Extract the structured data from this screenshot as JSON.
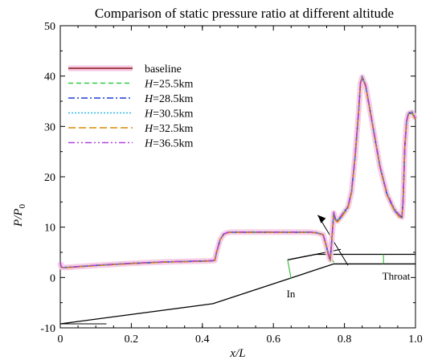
{
  "chart_data": {
    "type": "line",
    "title": "Comparison of static pressure ratio at different altitude",
    "xlabel": "x/L",
    "ylabel": "P/P0",
    "xlim": [
      0,
      1
    ],
    "ylim": [
      -10,
      50
    ],
    "xticks": [
      "0",
      "0.2",
      "0.4",
      "0.6",
      "0.8",
      "1.0"
    ],
    "yticks": [
      "-10",
      "0",
      "10",
      "20",
      "30",
      "40",
      "50"
    ],
    "legend_position": "top-left",
    "series": [
      {
        "name": "baseline",
        "name_parts": [
          "",
          "baseline"
        ],
        "color": "#8B1A1A",
        "dash": "",
        "width": 1.6,
        "halo": true,
        "offset": 0
      },
      {
        "name": "H=25.5km",
        "name_parts": [
          "H",
          "=25.5km"
        ],
        "color": "#2ECC40",
        "dash": "6,4",
        "width": 1.4,
        "halo": false,
        "offset": 0.15
      },
      {
        "name": "H=28.5km",
        "name_parts": [
          "H",
          "=28.5km"
        ],
        "color": "#1F3FD6",
        "dash": "8,3,2,3",
        "width": 1.4,
        "halo": false,
        "offset": -0.1
      },
      {
        "name": "H=30.5km",
        "name_parts": [
          "H",
          "=30.5km"
        ],
        "color": "#32B8E6",
        "dash": "2,2",
        "width": 1.4,
        "halo": false,
        "offset": 0.05
      },
      {
        "name": "H=32.5km",
        "name_parts": [
          "H",
          "=32.5km"
        ],
        "color": "#D98A00",
        "dash": "9,4",
        "width": 1.4,
        "halo": false,
        "offset": -0.2
      },
      {
        "name": "H=36.5km",
        "name_parts": [
          "H",
          "=36.5km"
        ],
        "color": "#B040E0",
        "dash": "8,3,2,3,2,3",
        "width": 1.4,
        "halo": false,
        "offset": 0.2
      }
    ],
    "x": [
      0,
      0.002,
      0.005,
      0.02,
      0.1,
      0.2,
      0.3,
      0.42,
      0.435,
      0.44,
      0.45,
      0.46,
      0.47,
      0.48,
      0.5,
      0.55,
      0.6,
      0.65,
      0.7,
      0.72,
      0.74,
      0.75,
      0.755,
      0.76,
      0.765,
      0.77,
      0.775,
      0.78,
      0.79,
      0.8,
      0.81,
      0.82,
      0.83,
      0.84,
      0.845,
      0.85,
      0.86,
      0.88,
      0.9,
      0.92,
      0.94,
      0.955,
      0.962,
      0.965,
      0.97,
      0.975,
      0.98,
      0.99,
      1.0
    ],
    "y": [
      3.0,
      2.2,
      2.0,
      2.0,
      2.4,
      2.8,
      3.1,
      3.3,
      3.4,
      5.0,
      7.5,
      8.6,
      8.9,
      9.0,
      9.0,
      9.0,
      9.0,
      9.0,
      9.0,
      8.9,
      8.5,
      6.0,
      4.5,
      3.5,
      8.0,
      12.8,
      11.5,
      11.2,
      12.0,
      13.0,
      14.0,
      17.0,
      24.0,
      33.0,
      38.5,
      39.8,
      38.0,
      30.0,
      22.0,
      16.5,
      13.5,
      12.2,
      12.0,
      15.0,
      26.0,
      31.0,
      32.5,
      32.8,
      31.5
    ],
    "annotations": {
      "inlet_label": "In",
      "throat_label": "Throat"
    }
  }
}
